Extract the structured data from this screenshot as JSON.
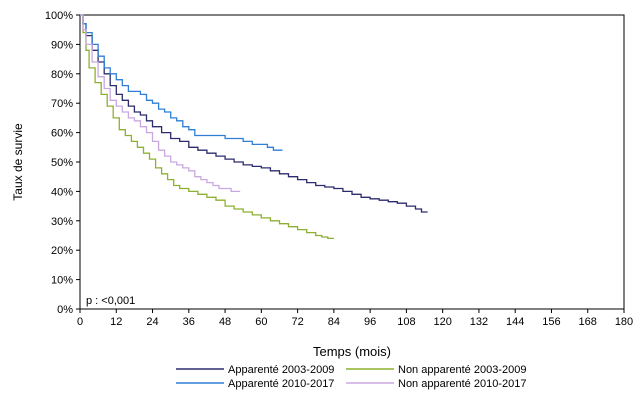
{
  "chart_data": {
    "type": "line",
    "xlabel": "Temps (mois)",
    "ylabel": "Taux de survie",
    "xlim": [
      0,
      180
    ],
    "ylim": [
      0,
      100
    ],
    "x_ticks": [
      "0",
      "12",
      "24",
      "36",
      "48",
      "60",
      "72",
      "84",
      "96",
      "108",
      "120",
      "132",
      "144",
      "156",
      "168",
      "180"
    ],
    "y_ticks": [
      "0%",
      "10%",
      "20%",
      "30%",
      "40%",
      "50%",
      "60%",
      "70%",
      "80%",
      "90%",
      "100%"
    ],
    "annotation": "p : <0,001",
    "legend_position": "bottom",
    "grid": false,
    "series": [
      {
        "name": "Apparenté 2003-2009",
        "color": "#2b2b6e",
        "points": [
          [
            0,
            100
          ],
          [
            1,
            97
          ],
          [
            2,
            93
          ],
          [
            4,
            88
          ],
          [
            6,
            84
          ],
          [
            8,
            80
          ],
          [
            10,
            76
          ],
          [
            12,
            73
          ],
          [
            14,
            71
          ],
          [
            16,
            69
          ],
          [
            18,
            67
          ],
          [
            20,
            66
          ],
          [
            22,
            64
          ],
          [
            24,
            62
          ],
          [
            27,
            60
          ],
          [
            30,
            58
          ],
          [
            33,
            57
          ],
          [
            36,
            55
          ],
          [
            39,
            54
          ],
          [
            42,
            53
          ],
          [
            45,
            52
          ],
          [
            48,
            51
          ],
          [
            51,
            50
          ],
          [
            54,
            49
          ],
          [
            57,
            48.5
          ],
          [
            60,
            48
          ],
          [
            63,
            47
          ],
          [
            66,
            46
          ],
          [
            69,
            45
          ],
          [
            72,
            44
          ],
          [
            75,
            43
          ],
          [
            78,
            42
          ],
          [
            81,
            41.5
          ],
          [
            84,
            41
          ],
          [
            87,
            40
          ],
          [
            90,
            39
          ],
          [
            93,
            38
          ],
          [
            96,
            37.5
          ],
          [
            99,
            37
          ],
          [
            102,
            36.5
          ],
          [
            105,
            36
          ],
          [
            108,
            35
          ],
          [
            111,
            34
          ],
          [
            113,
            33
          ],
          [
            115,
            33
          ]
        ]
      },
      {
        "name": "Apparenté 2010-2017",
        "color": "#2f7fd6",
        "points": [
          [
            0,
            100
          ],
          [
            1,
            97
          ],
          [
            2,
            94
          ],
          [
            4,
            90
          ],
          [
            6,
            86
          ],
          [
            8,
            82
          ],
          [
            10,
            80
          ],
          [
            12,
            78
          ],
          [
            14,
            76
          ],
          [
            16,
            74
          ],
          [
            18,
            74
          ],
          [
            20,
            73
          ],
          [
            22,
            71
          ],
          [
            24,
            70
          ],
          [
            26,
            68
          ],
          [
            28,
            67
          ],
          [
            30,
            65
          ],
          [
            32,
            64
          ],
          [
            34,
            62
          ],
          [
            36,
            61
          ],
          [
            38,
            59
          ],
          [
            40,
            59
          ],
          [
            43,
            59
          ],
          [
            46,
            59
          ],
          [
            48,
            58
          ],
          [
            51,
            58
          ],
          [
            54,
            57
          ],
          [
            57,
            56
          ],
          [
            60,
            56
          ],
          [
            62,
            55
          ],
          [
            64,
            54
          ],
          [
            67,
            54
          ]
        ]
      },
      {
        "name": "Non apparenté 2003-2009",
        "color": "#8db030",
        "points": [
          [
            0,
            100
          ],
          [
            1,
            94
          ],
          [
            2,
            88
          ],
          [
            3,
            82
          ],
          [
            5,
            77
          ],
          [
            7,
            73
          ],
          [
            9,
            69
          ],
          [
            11,
            65
          ],
          [
            13,
            61
          ],
          [
            15,
            59
          ],
          [
            17,
            57
          ],
          [
            19,
            55
          ],
          [
            21,
            53
          ],
          [
            23,
            51
          ],
          [
            25,
            48
          ],
          [
            27,
            46
          ],
          [
            29,
            44
          ],
          [
            31,
            42
          ],
          [
            33,
            41
          ],
          [
            36,
            40
          ],
          [
            39,
            39
          ],
          [
            42,
            38
          ],
          [
            45,
            37
          ],
          [
            48,
            35
          ],
          [
            51,
            34
          ],
          [
            54,
            33
          ],
          [
            57,
            32
          ],
          [
            60,
            31
          ],
          [
            63,
            30
          ],
          [
            66,
            29
          ],
          [
            69,
            28
          ],
          [
            72,
            27
          ],
          [
            75,
            26
          ],
          [
            78,
            25
          ],
          [
            80,
            24.5
          ],
          [
            82,
            24
          ],
          [
            84,
            24
          ]
        ]
      },
      {
        "name": "Non apparenté 2010-2017",
        "color": "#c9a8e0",
        "points": [
          [
            0,
            100
          ],
          [
            1,
            95
          ],
          [
            2,
            90
          ],
          [
            4,
            84
          ],
          [
            6,
            79
          ],
          [
            8,
            75
          ],
          [
            10,
            71
          ],
          [
            12,
            69
          ],
          [
            14,
            67
          ],
          [
            16,
            65
          ],
          [
            18,
            64
          ],
          [
            20,
            62
          ],
          [
            22,
            60
          ],
          [
            24,
            57
          ],
          [
            26,
            54
          ],
          [
            28,
            52
          ],
          [
            30,
            50
          ],
          [
            32,
            49
          ],
          [
            34,
            48
          ],
          [
            36,
            47
          ],
          [
            38,
            45
          ],
          [
            40,
            44
          ],
          [
            42,
            43
          ],
          [
            44,
            42
          ],
          [
            46,
            41
          ],
          [
            48,
            41
          ],
          [
            50,
            40
          ],
          [
            52,
            40
          ],
          [
            53,
            40
          ]
        ]
      }
    ]
  }
}
